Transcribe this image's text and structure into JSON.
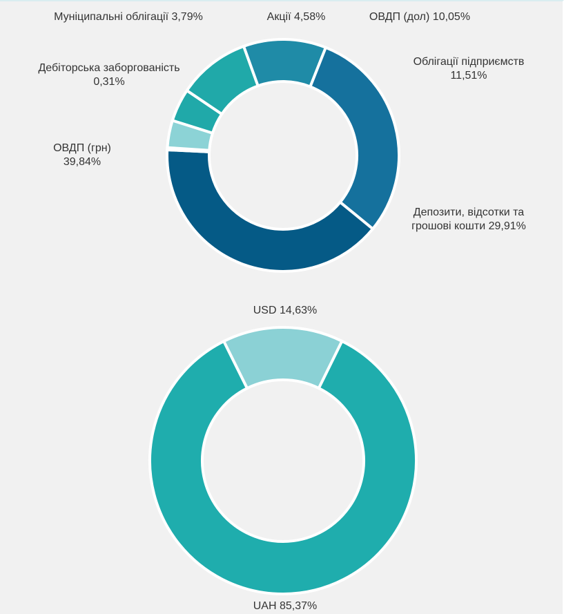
{
  "chart_data": [
    {
      "type": "pie",
      "hole": "donut",
      "slices": [
        {
          "label": "Акції 4,58%",
          "lines": [
            "Акції 4,58%"
          ],
          "value": 4.58,
          "color": "#20a9a9"
        },
        {
          "label": "ОВДП (дол) 10,05%",
          "lines": [
            "ОВДП (дол) 10,05%"
          ],
          "value": 10.05,
          "color": "#20a9a9"
        },
        {
          "label": "Облігації підприємств 11,51%",
          "lines": [
            "Облігації підприємств",
            "11,51%"
          ],
          "value": 11.51,
          "color": "#1f8ba7"
        },
        {
          "label": "Депозити, відсотки та грошові кошти 29,91%",
          "lines": [
            "Депозити, відсотки та",
            "грошові кошти 29,91%"
          ],
          "value": 29.91,
          "color": "#15719d"
        },
        {
          "label": "ОВДП (грн) 39,84%",
          "lines": [
            "ОВДП (грн)",
            "39,84%"
          ],
          "value": 39.84,
          "color": "#055a86"
        },
        {
          "label": "Дебіторська заборгованість 0,31%",
          "lines": [
            "Дебіторська заборгованість",
            "0,31%"
          ],
          "value": 0.31,
          "color": "#7fd0d6"
        },
        {
          "label": "Муніципальні облігації 3,79%",
          "lines": [
            "Муніципальні облігації 3,79%"
          ],
          "value": 3.79,
          "color": "#8cd3d6"
        }
      ]
    },
    {
      "type": "pie",
      "hole": "donut",
      "slices": [
        {
          "label": "USD 14,63%",
          "lines": [
            "USD 14,63%"
          ],
          "value": 14.63,
          "color": "#8bd1d5"
        },
        {
          "label": "UAH 85,37%",
          "lines": [
            "UAH 85,37%"
          ],
          "value": 85.37,
          "color": "#1fadad"
        }
      ]
    }
  ]
}
